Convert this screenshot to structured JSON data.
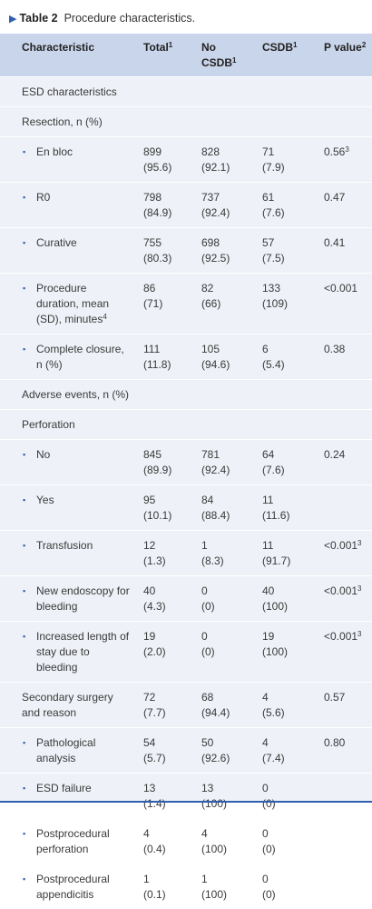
{
  "caption": {
    "label": "Table 2",
    "text": "Procedure characteristics."
  },
  "headers": [
    {
      "text": "Characteristic",
      "sup": ""
    },
    {
      "text": "Total",
      "sup": "1"
    },
    {
      "text": "No CSDB",
      "sup": "1"
    },
    {
      "text": "CSDB",
      "sup": "1"
    },
    {
      "text": "P value",
      "sup": "2"
    }
  ],
  "rows": [
    {
      "label": "ESD characteristics"
    },
    {
      "label": "Resection, n (%)"
    },
    {
      "label": "En bloc",
      "total": [
        "899",
        "(95.6)"
      ],
      "nocsdb": [
        "828",
        "(92.1)"
      ],
      "csdb": [
        "71",
        "(7.9)"
      ],
      "p": "0.56",
      "psup": "3"
    },
    {
      "label": "R0",
      "total": [
        "798",
        "(84.9)"
      ],
      "nocsdb": [
        "737",
        "(92.4)"
      ],
      "csdb": [
        "61",
        "(7.6)"
      ],
      "p": "0.47",
      "psup": ""
    },
    {
      "label": "Curative",
      "total": [
        "755",
        "(80.3)"
      ],
      "nocsdb": [
        "698",
        "(92.5)"
      ],
      "csdb": [
        "57",
        "(7.5)"
      ],
      "p": "0.41",
      "psup": ""
    },
    {
      "label": "Procedure duration, mean (SD), minutes",
      "labelsup": "4",
      "total": [
        "86",
        "(71)"
      ],
      "nocsdb": [
        "82",
        "(66)"
      ],
      "csdb": [
        "133",
        "(109)"
      ],
      "p": "<0.001",
      "psup": ""
    },
    {
      "label": "Complete closure, n (%)",
      "total": [
        "111",
        "(11.8)"
      ],
      "nocsdb": [
        "105",
        "(94.6)"
      ],
      "csdb": [
        "6",
        "(5.4)"
      ],
      "p": "0.38",
      "psup": ""
    },
    {
      "label": "Adverse events, n (%)"
    },
    {
      "label": "Perforation"
    },
    {
      "label": "No",
      "total": [
        "845",
        "(89.9)"
      ],
      "nocsdb": [
        "781",
        "(92.4)"
      ],
      "csdb": [
        "64",
        "(7.6)"
      ],
      "p": "0.24",
      "psup": ""
    },
    {
      "label": "Yes",
      "total": [
        "95",
        "(10.1)"
      ],
      "nocsdb": [
        "84",
        "(88.4)"
      ],
      "csdb": [
        "11",
        "(11.6)"
      ],
      "p": "",
      "psup": ""
    },
    {
      "label": "Transfusion",
      "total": [
        "12",
        "(1.3)"
      ],
      "nocsdb": [
        "1",
        "(8.3)"
      ],
      "csdb": [
        "11",
        "(91.7)"
      ],
      "p": "<0.001",
      "psup": "3"
    },
    {
      "label": "New endoscopy for bleeding",
      "total": [
        "40",
        "(4.3)"
      ],
      "nocsdb": [
        "0",
        "(0)"
      ],
      "csdb": [
        "40",
        "(100)"
      ],
      "p": "<0.001",
      "psup": "3"
    },
    {
      "label": "Increased length of stay due to bleeding",
      "total": [
        "19",
        "(2.0)"
      ],
      "nocsdb": [
        "0",
        "(0)"
      ],
      "csdb": [
        "19",
        "(100)"
      ],
      "p": "<0.001",
      "psup": "3"
    },
    {
      "label": "Secondary surgery and reason",
      "total": [
        "72",
        "(7.7)"
      ],
      "nocsdb": [
        "68",
        "(94.4)"
      ],
      "csdb": [
        "4",
        "(5.6)"
      ],
      "p": "0.57",
      "psup": ""
    },
    {
      "label": "Pathological analysis",
      "total": [
        "54",
        "(5.7)"
      ],
      "nocsdb": [
        "50",
        "(92.6)"
      ],
      "csdb": [
        "4",
        "(7.4)"
      ],
      "p": "0.80",
      "psup": ""
    },
    {
      "label": "ESD failure",
      "total": [
        "13",
        "(1.4)"
      ],
      "nocsdb": [
        "13",
        "(100)"
      ],
      "csdb": [
        "0",
        "(0)"
      ],
      "p": "",
      "psup": ""
    },
    {
      "label": "Postprocedural perforation",
      "total": [
        "4",
        "(0.4)"
      ],
      "nocsdb": [
        "4",
        "(100)"
      ],
      "csdb": [
        "0",
        "(0)"
      ],
      "p": "",
      "psup": ""
    },
    {
      "label": "Postprocedural appendicitis",
      "total": [
        "1",
        "(0.1)"
      ],
      "nocsdb": [
        "1",
        "(100)"
      ],
      "csdb": [
        "0",
        "(0)"
      ],
      "p": "",
      "psup": ""
    }
  ]
}
